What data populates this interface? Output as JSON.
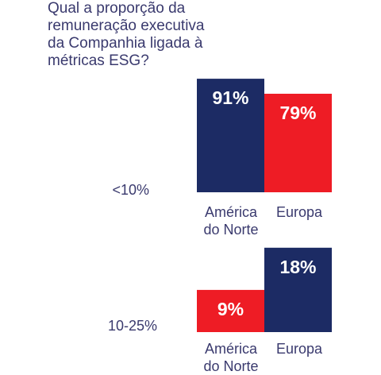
{
  "chart_data": {
    "type": "bar",
    "title": "Qual a proporção da\nremuneração executiva\nda Companhia ligada à\nmétricas ESG?",
    "colors": {
      "america": "#1c2b64",
      "europa": "#ee1c25"
    },
    "groups": [
      {
        "label": "<10%",
        "bars": [
          {
            "category": "América\ndo Norte",
            "value": 91,
            "display": "91%",
            "color_key": "america"
          },
          {
            "category": "Europa",
            "value": 79,
            "display": "79%",
            "color_key": "europa"
          }
        ]
      },
      {
        "label": "10-25%",
        "bars": [
          {
            "category": "América\ndo Norte",
            "value": 9,
            "display": "9%",
            "color_key": "europa"
          },
          {
            "category": "Europa",
            "value": 18,
            "display": "18%",
            "color_key": "america"
          }
        ]
      }
    ]
  }
}
